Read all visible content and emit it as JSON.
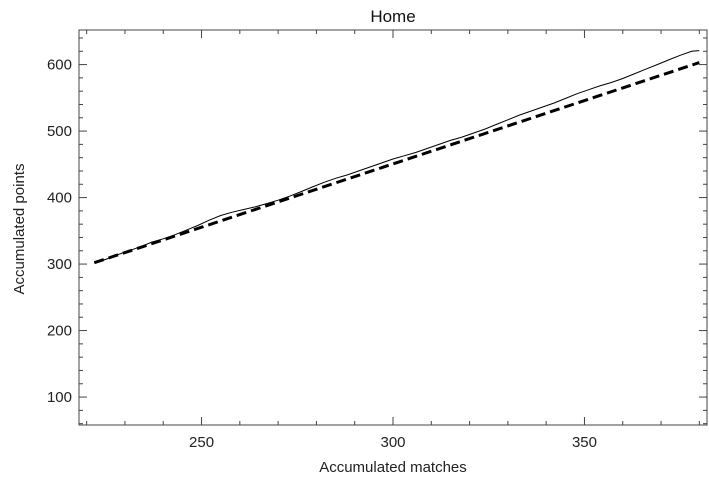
{
  "chart_data": {
    "type": "line",
    "title": "Home",
    "xlabel": "Accumulated matches",
    "ylabel": "Accumulated points",
    "xlim": [
      218,
      382
    ],
    "ylim": [
      58,
      652
    ],
    "xticks": [
      250,
      300,
      350
    ],
    "yticks": [
      100,
      200,
      300,
      400,
      500,
      600
    ],
    "frame": true,
    "grid": false,
    "series": [
      {
        "style": "solid-thin",
        "color": "#000000",
        "points": [
          [
            222,
            302
          ],
          [
            225,
            307
          ],
          [
            228,
            314
          ],
          [
            231,
            320
          ],
          [
            234,
            326
          ],
          [
            237,
            333
          ],
          [
            240,
            338
          ],
          [
            243,
            344
          ],
          [
            246,
            351
          ],
          [
            249,
            358
          ],
          [
            252,
            366
          ],
          [
            255,
            373
          ],
          [
            258,
            378
          ],
          [
            261,
            382
          ],
          [
            264,
            386
          ],
          [
            267,
            391
          ],
          [
            270,
            396
          ],
          [
            273,
            402
          ],
          [
            276,
            409
          ],
          [
            279,
            416
          ],
          [
            282,
            423
          ],
          [
            285,
            429
          ],
          [
            288,
            434
          ],
          [
            291,
            440
          ],
          [
            294,
            446
          ],
          [
            297,
            452
          ],
          [
            300,
            458
          ],
          [
            303,
            463
          ],
          [
            306,
            468
          ],
          [
            309,
            474
          ],
          [
            312,
            480
          ],
          [
            315,
            486
          ],
          [
            318,
            491
          ],
          [
            321,
            497
          ],
          [
            324,
            503
          ],
          [
            327,
            510
          ],
          [
            330,
            517
          ],
          [
            333,
            524
          ],
          [
            336,
            530
          ],
          [
            339,
            536
          ],
          [
            342,
            542
          ],
          [
            345,
            549
          ],
          [
            348,
            556
          ],
          [
            351,
            562
          ],
          [
            354,
            568
          ],
          [
            357,
            573
          ],
          [
            360,
            579
          ],
          [
            363,
            586
          ],
          [
            366,
            593
          ],
          [
            369,
            600
          ],
          [
            372,
            607
          ],
          [
            375,
            614
          ],
          [
            378,
            620
          ],
          [
            380,
            621
          ]
        ]
      },
      {
        "style": "dashed-thick",
        "color": "#000000",
        "points": [
          [
            222,
            302
          ],
          [
            380,
            603
          ]
        ]
      }
    ]
  }
}
